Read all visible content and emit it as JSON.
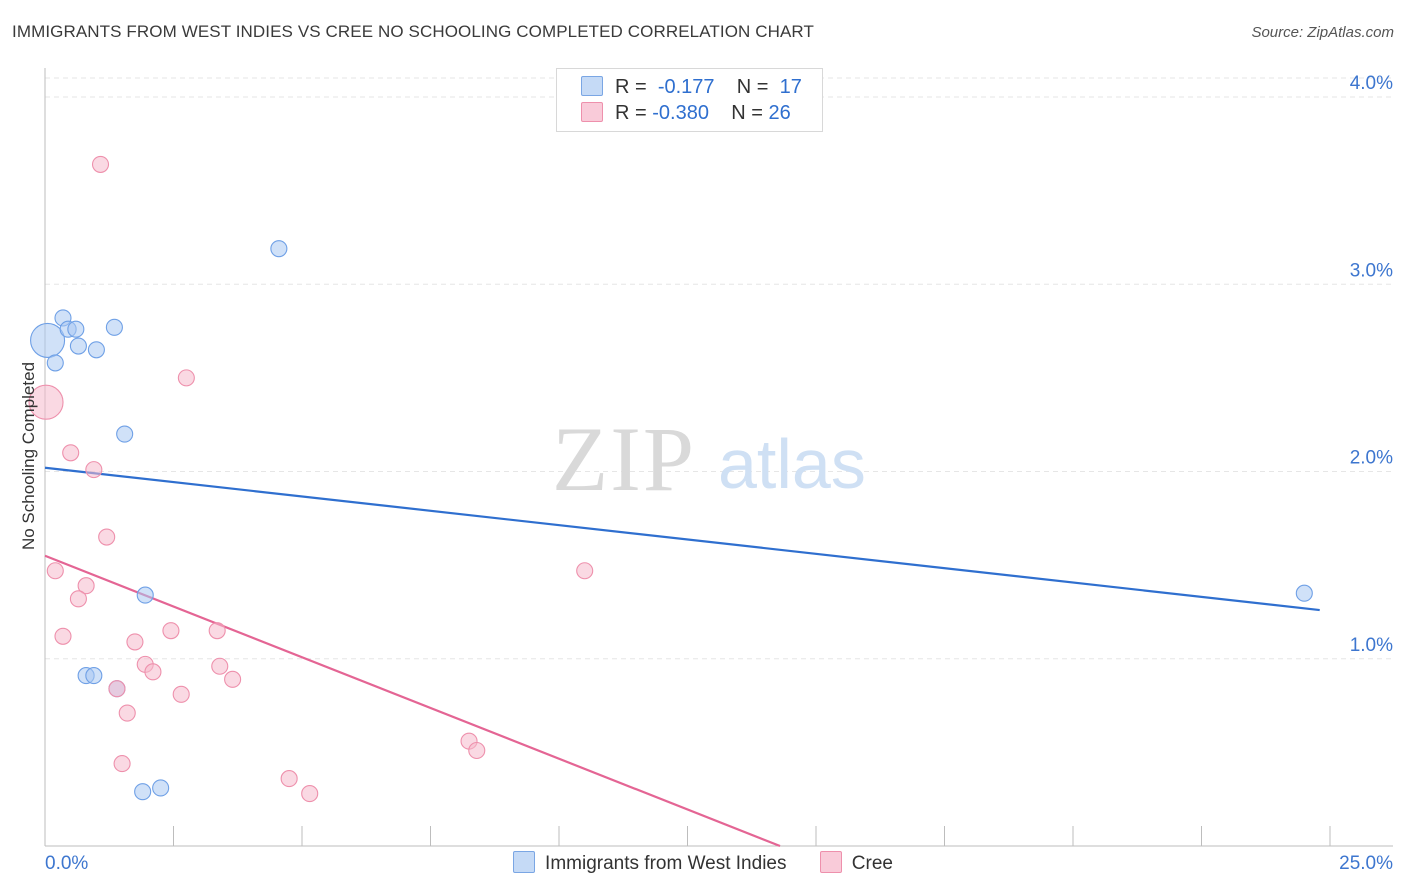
{
  "header": {
    "title": "IMMIGRANTS FROM WEST INDIES VS CREE NO SCHOOLING COMPLETED CORRELATION CHART",
    "source": "Source: ZipAtlas.com"
  },
  "watermark": {
    "zip": "ZIP",
    "atlas": "atlas"
  },
  "legend": {
    "rows": [
      {
        "r_label": "R =",
        "r_value": "-0.177",
        "n_label": "N =",
        "n_value": "17",
        "color": "#a9c8f2"
      },
      {
        "r_label": "R =",
        "r_value": "-0.380",
        "n_label": "N =",
        "n_value": "26",
        "color": "#f6b9cc"
      }
    ]
  },
  "bottom_legend": {
    "items": [
      {
        "label": "Immigrants from West Indies",
        "color": "#a9c8f2"
      },
      {
        "label": "Cree",
        "color": "#f6b9cc"
      }
    ]
  },
  "chart_data": {
    "type": "scatter",
    "title": "IMMIGRANTS FROM WEST INDIES VS CREE NO SCHOOLING COMPLETED CORRELATION CHART",
    "xlabel": "",
    "ylabel": "No Schooling Completed",
    "xlim": [
      0,
      25
    ],
    "ylim": [
      0,
      4.1
    ],
    "x_tick_labels": [
      "0.0%",
      "25.0%"
    ],
    "y_ticks": [
      1,
      2,
      3,
      4
    ],
    "y_tick_labels": [
      "1.0%",
      "2.0%",
      "3.0%",
      "4.0%"
    ],
    "grid": true,
    "legend_position": "top-center",
    "series": [
      {
        "name": "Immigrants from West Indies",
        "color": "#6fa0e6",
        "fill": "#a9c8f2",
        "line_color": "#2f6fcf",
        "trend": {
          "x0": 0,
          "y0": 2.02,
          "x1": 24.8,
          "y1": 1.26
        },
        "points": [
          {
            "x": 0.05,
            "y": 2.7,
            "big": true
          },
          {
            "x": 0.2,
            "y": 2.58
          },
          {
            "x": 0.35,
            "y": 2.82
          },
          {
            "x": 0.45,
            "y": 2.76
          },
          {
            "x": 0.6,
            "y": 2.76
          },
          {
            "x": 0.65,
            "y": 2.67
          },
          {
            "x": 1.0,
            "y": 2.65
          },
          {
            "x": 1.35,
            "y": 2.77
          },
          {
            "x": 1.55,
            "y": 2.2
          },
          {
            "x": 4.55,
            "y": 3.19
          },
          {
            "x": 1.95,
            "y": 1.34
          },
          {
            "x": 0.8,
            "y": 0.91
          },
          {
            "x": 0.95,
            "y": 0.91
          },
          {
            "x": 1.4,
            "y": 0.84
          },
          {
            "x": 1.9,
            "y": 0.29
          },
          {
            "x": 2.25,
            "y": 0.31
          },
          {
            "x": 24.5,
            "y": 1.35
          }
        ]
      },
      {
        "name": "Cree",
        "color": "#ee90ac",
        "fill": "#f6b9cc",
        "line_color": "#e46594",
        "trend": {
          "x0": 0,
          "y0": 1.55,
          "x1": 14.3,
          "y1": 0.0
        },
        "points": [
          {
            "x": 0.02,
            "y": 2.37,
            "big": true
          },
          {
            "x": 1.08,
            "y": 3.64
          },
          {
            "x": 2.75,
            "y": 2.5
          },
          {
            "x": 0.5,
            "y": 2.1
          },
          {
            "x": 0.95,
            "y": 2.01
          },
          {
            "x": 1.2,
            "y": 1.65
          },
          {
            "x": 0.2,
            "y": 1.47
          },
          {
            "x": 0.8,
            "y": 1.39
          },
          {
            "x": 0.65,
            "y": 1.32
          },
          {
            "x": 10.5,
            "y": 1.47
          },
          {
            "x": 0.35,
            "y": 1.12
          },
          {
            "x": 1.75,
            "y": 1.09
          },
          {
            "x": 2.45,
            "y": 1.15
          },
          {
            "x": 3.35,
            "y": 1.15
          },
          {
            "x": 1.95,
            "y": 0.97
          },
          {
            "x": 2.1,
            "y": 0.93
          },
          {
            "x": 3.4,
            "y": 0.96
          },
          {
            "x": 3.65,
            "y": 0.89
          },
          {
            "x": 2.65,
            "y": 0.81
          },
          {
            "x": 1.4,
            "y": 0.84
          },
          {
            "x": 1.6,
            "y": 0.71
          },
          {
            "x": 1.5,
            "y": 0.44
          },
          {
            "x": 8.25,
            "y": 0.56
          },
          {
            "x": 8.4,
            "y": 0.51
          },
          {
            "x": 4.75,
            "y": 0.36
          },
          {
            "x": 5.15,
            "y": 0.28
          }
        ]
      }
    ]
  }
}
